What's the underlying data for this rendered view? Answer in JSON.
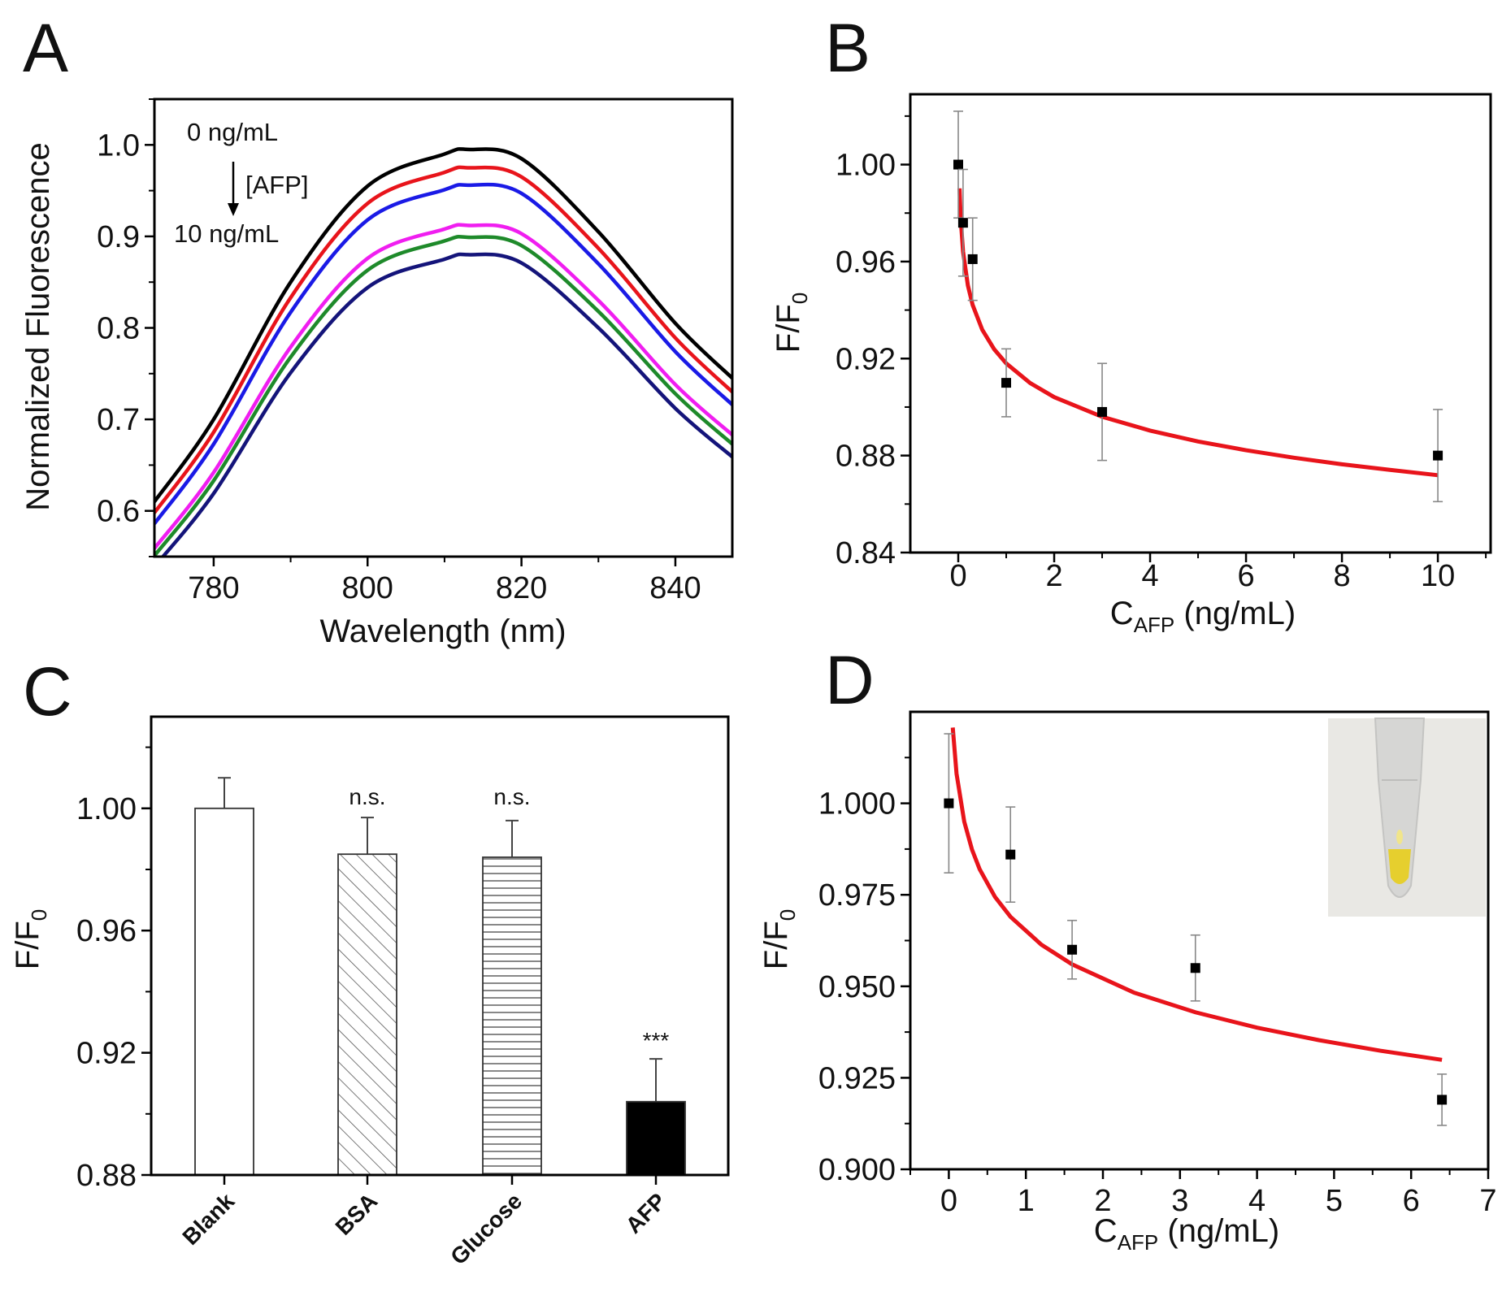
{
  "chart_data": [
    {
      "panel": "A",
      "type": "line",
      "xlabel": "Wavelength (nm)",
      "ylabel": "Normalized Fluorescence",
      "xlim": [
        772.3,
        847.4
      ],
      "ylim": [
        0.55,
        1.05
      ],
      "xticks": [
        "780",
        "800",
        "820",
        "840"
      ],
      "yticks": [
        "0.6",
        "0.7",
        "0.8",
        "0.9",
        "1.0"
      ],
      "grid": false,
      "annotations": {
        "top": "0 ng/mL",
        "arrow": "[AFP]",
        "bottom": "10 ng/mL"
      },
      "x": [
        772.3,
        780,
        790,
        800,
        810,
        813,
        820,
        830,
        840,
        847.4
      ],
      "series": [
        {
          "color": "#000000",
          "values": [
            0.61,
            0.7,
            0.85,
            0.955,
            0.99,
            0.995,
            0.985,
            0.905,
            0.805,
            0.745
          ]
        },
        {
          "color": "#e8141b",
          "values": [
            0.598,
            0.686,
            0.833,
            0.936,
            0.97,
            0.975,
            0.965,
            0.887,
            0.789,
            0.73
          ]
        },
        {
          "color": "#1a1ae6",
          "values": [
            0.586,
            0.673,
            0.817,
            0.918,
            0.951,
            0.956,
            0.947,
            0.87,
            0.774,
            0.716
          ]
        },
        {
          "color": "#f01ef0",
          "values": [
            0.559,
            0.642,
            0.779,
            0.876,
            0.908,
            0.912,
            0.903,
            0.83,
            0.738,
            0.683
          ]
        },
        {
          "color": "#1e8a2a",
          "values": [
            0.551,
            0.633,
            0.768,
            0.863,
            0.895,
            0.899,
            0.89,
            0.818,
            0.728,
            0.673
          ]
        },
        {
          "color": "#14147a",
          "values": [
            0.539,
            0.619,
            0.751,
            0.844,
            0.875,
            0.88,
            0.871,
            0.8,
            0.712,
            0.659
          ]
        }
      ]
    },
    {
      "panel": "B",
      "type": "scatter",
      "xlabel_main": "C",
      "xlabel_sub": "AFP",
      "xlabel_rest": " (ng/mL)",
      "ylabel_main": "F/F",
      "ylabel_sub": "0",
      "xlim": [
        -1.0,
        11.1
      ],
      "ylim": [
        0.84,
        1.029
      ],
      "xticks": [
        "0",
        "2",
        "4",
        "6",
        "8",
        "10"
      ],
      "yticks": [
        "0.84",
        "0.88",
        "0.92",
        "0.96",
        "1.00"
      ],
      "grid": false,
      "points": {
        "x": [
          0,
          0.1,
          0.3,
          1,
          3,
          10
        ],
        "y": [
          1.0,
          0.976,
          0.961,
          0.91,
          0.898,
          0.88
        ],
        "err": [
          0.022,
          0.022,
          0.017,
          0.014,
          0.02,
          0.019
        ]
      },
      "fit": {
        "color": "#e8141b",
        "x": [
          0.027,
          0.05,
          0.1,
          0.2,
          0.3,
          0.5,
          0.75,
          1,
          1.5,
          2,
          3,
          4,
          5,
          6,
          7,
          8,
          9,
          10
        ],
        "y": [
          0.9902,
          0.9779,
          0.9641,
          0.9502,
          0.9421,
          0.9319,
          0.9238,
          0.918,
          0.9099,
          0.9041,
          0.896,
          0.8903,
          0.8858,
          0.8822,
          0.8791,
          0.8764,
          0.8741,
          0.8719
        ]
      }
    },
    {
      "panel": "C",
      "type": "bar",
      "ylabel_main": "F/F",
      "ylabel_sub": "0",
      "ylim": [
        0.88,
        1.03
      ],
      "yticks": [
        "0.88",
        "0.92",
        "0.96",
        "1.00"
      ],
      "grid": false,
      "categories": [
        "Blank",
        "BSA",
        "Glucose",
        "AFP"
      ],
      "values": [
        1.0,
        0.985,
        0.984,
        0.904
      ],
      "err": [
        0.01,
        0.012,
        0.012,
        0.014
      ],
      "fills": [
        "open",
        "diagonal-hatch",
        "horizontal-hatch",
        "solid-black"
      ],
      "significance": [
        "",
        "n.s.",
        "n.s.",
        "***"
      ]
    },
    {
      "panel": "D",
      "type": "scatter",
      "xlabel_main": "C",
      "xlabel_sub": "AFP",
      "xlabel_rest": " (ng/mL)",
      "ylabel_main": "F/F",
      "ylabel_sub": "0",
      "xlim": [
        -0.5,
        7
      ],
      "ylim": [
        0.9,
        1.025
      ],
      "xticks": [
        "0",
        "1",
        "2",
        "3",
        "4",
        "5",
        "6",
        "7"
      ],
      "yticks": [
        "0.900",
        "0.925",
        "0.950",
        "0.975",
        "1.000"
      ],
      "grid": false,
      "inset": "tube-photo",
      "points": {
        "x": [
          0,
          0.8,
          1.6,
          3.2,
          6.4
        ],
        "y": [
          1.0,
          0.986,
          0.96,
          0.955,
          0.919
        ],
        "err": [
          0.019,
          0.013,
          0.008,
          0.009,
          0.007
        ]
      },
      "fit": {
        "color": "#e8141b",
        "x": [
          0.051,
          0.1,
          0.2,
          0.3,
          0.4,
          0.6,
          0.8,
          1.2,
          1.6,
          2.4,
          3.2,
          4,
          4.8,
          5.6,
          6.4
        ],
        "y": [
          1.0207,
          1.0081,
          0.995,
          0.9874,
          0.982,
          0.9744,
          0.969,
          0.9614,
          0.956,
          0.9483,
          0.9429,
          0.9387,
          0.9353,
          0.9324,
          0.9299
        ]
      }
    }
  ]
}
